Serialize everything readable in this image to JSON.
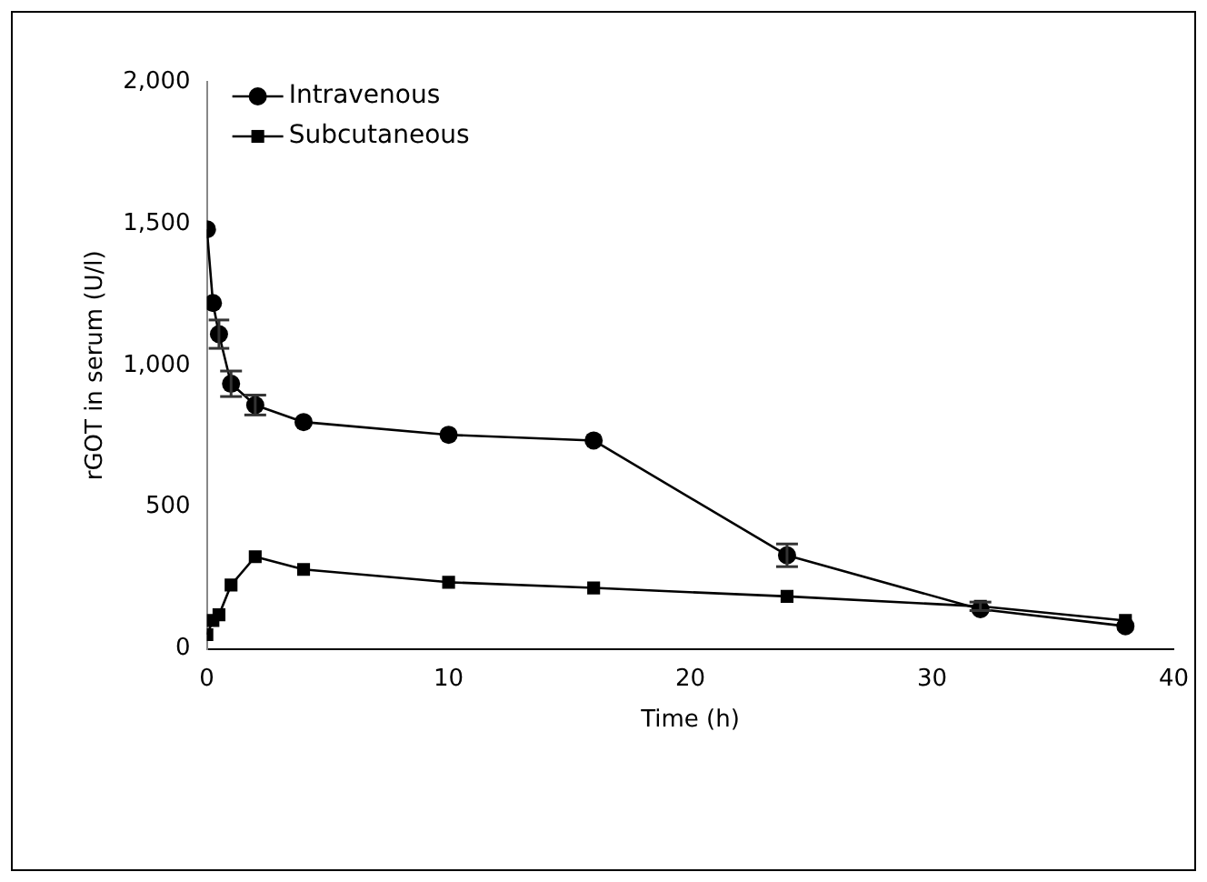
{
  "chart_data": {
    "type": "line",
    "xlabel": "Time (h)",
    "ylabel": "rGOT in serum (U/l)",
    "xlim": [
      0,
      40
    ],
    "xticks": [
      0,
      10,
      20,
      30,
      40
    ],
    "ylim": [
      0,
      2000
    ],
    "yticks": [
      {
        "value": 0,
        "label": "0"
      },
      {
        "value": 500,
        "label": "500"
      },
      {
        "value": 1000,
        "label": "1,000"
      },
      {
        "value": 1500,
        "label": "1,500"
      },
      {
        "value": 2000,
        "label": "2,000"
      }
    ],
    "x": [
      0,
      0.25,
      0.5,
      1,
      2,
      4,
      10,
      16,
      24,
      32,
      38
    ],
    "grid": false,
    "legend": "top left",
    "line_style": "solid",
    "series": [
      {
        "name": "Intravenous",
        "color": "#000000",
        "marker": "circle",
        "values": [
          1480,
          1220,
          1110,
          935,
          860,
          800,
          755,
          735,
          330,
          140,
          80
        ],
        "errors": [
          null,
          null,
          50,
          45,
          35,
          null,
          null,
          null,
          40,
          null,
          null
        ]
      },
      {
        "name": "Subcutaneous",
        "color": "#000000",
        "marker": "square",
        "values": [
          50,
          100,
          120,
          225,
          325,
          280,
          235,
          215,
          185,
          150,
          100
        ],
        "errors": [
          null,
          null,
          null,
          null,
          null,
          null,
          null,
          null,
          null,
          15,
          null
        ]
      }
    ]
  }
}
